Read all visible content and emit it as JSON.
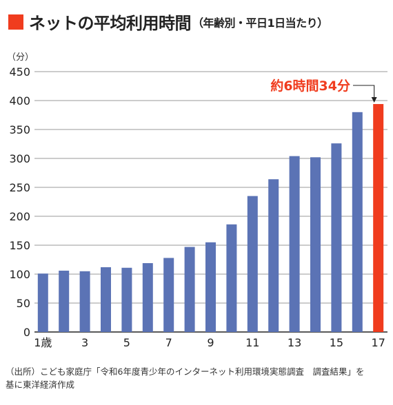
{
  "header": {
    "title": "ネットの平均利用時間",
    "subtitle": "（年齢別・平日1日当たり）",
    "marker_color": "#f03c1e"
  },
  "source": {
    "line1": "（出所）こども家庭庁「令和6年度青少年のインターネット利用環境実態調査　調査結果」を",
    "line2": "基に東洋経済作成"
  },
  "chart_data": {
    "type": "bar",
    "title": "ネットの平均利用時間",
    "subtitle": "（年齢別・平日1日当たり）",
    "ylabel": "（分）",
    "ylim": [
      0,
      450
    ],
    "yticks": [
      0,
      50,
      100,
      150,
      200,
      250,
      300,
      350,
      400,
      450
    ],
    "grid": true,
    "legend": "none",
    "categories": [
      "1歳",
      "2",
      "3",
      "4",
      "5",
      "6",
      "7",
      "8",
      "9",
      "10",
      "11",
      "12",
      "13",
      "14",
      "15",
      "16",
      "17"
    ],
    "tick_labels": [
      "1歳",
      "",
      "3",
      "",
      "5",
      "",
      "7",
      "",
      "9",
      "",
      "11",
      "",
      "13",
      "",
      "15",
      "",
      "17"
    ],
    "values": [
      101,
      106,
      105,
      112,
      111,
      119,
      128,
      147,
      155,
      186,
      235,
      264,
      304,
      302,
      326,
      380,
      394
    ],
    "bar_color": "#5b73b5",
    "highlight_color": "#f03c1e",
    "highlight_index": 16,
    "annotation": "約6時間34分"
  }
}
